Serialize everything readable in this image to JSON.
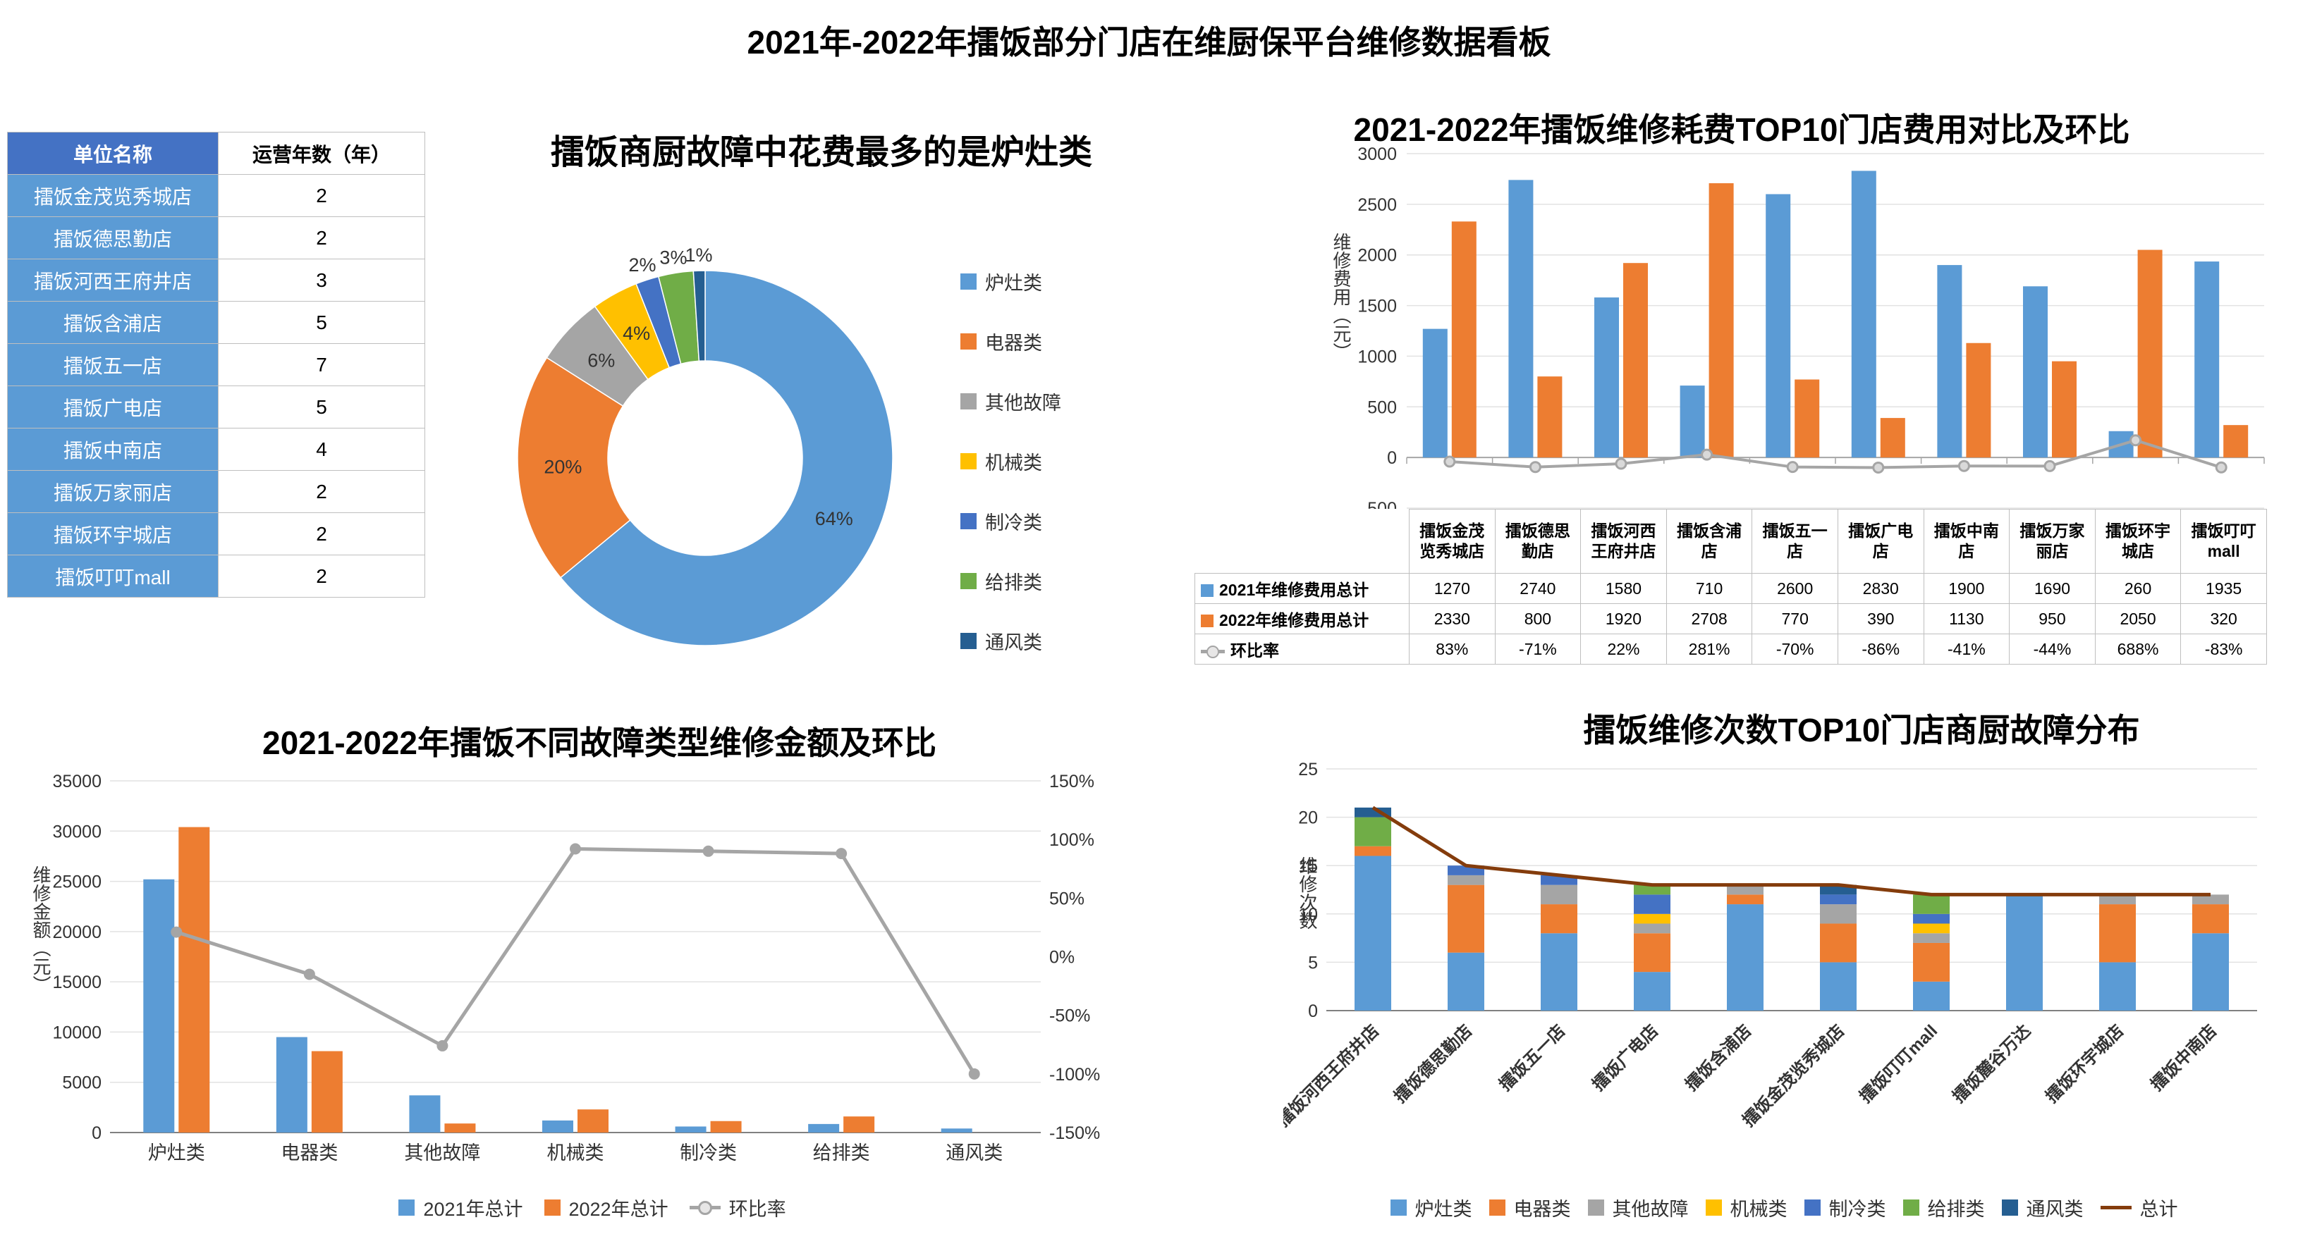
{
  "page": {
    "title": "2021年-2022年擂饭部分门店在维厨保平台维修数据看板"
  },
  "store_table": {
    "headers": [
      "单位名称",
      "运营年数（年）"
    ],
    "rows": [
      {
        "name": "擂饭金茂览秀城店",
        "years": "2"
      },
      {
        "name": "擂饭德思勤店",
        "years": "2"
      },
      {
        "name": "擂饭河西王府井店",
        "years": "3"
      },
      {
        "name": "擂饭含浦店",
        "years": "5"
      },
      {
        "name": "擂饭五一店",
        "years": "7"
      },
      {
        "name": "擂饭广电店",
        "years": "5"
      },
      {
        "name": "擂饭中南店",
        "years": "4"
      },
      {
        "name": "擂饭万家丽店",
        "years": "2"
      },
      {
        "name": "擂饭环宇城店",
        "years": "2"
      },
      {
        "name": "擂饭叮叮mall",
        "years": "2"
      }
    ]
  },
  "chart_data": [
    {
      "id": "fault-cost-donut",
      "type": "pie",
      "title": "擂饭商厨故障中花费最多的是炉灶类",
      "legend_position": "right",
      "slices": [
        {
          "label": "炉灶类",
          "pct": 64,
          "color": "#5B9BD5"
        },
        {
          "label": "电器类",
          "pct": 20,
          "color": "#ED7D31"
        },
        {
          "label": "其他故障",
          "pct": 6,
          "color": "#A5A5A5"
        },
        {
          "label": "机械类",
          "pct": 4,
          "color": "#FFC000"
        },
        {
          "label": "制冷类",
          "pct": 2,
          "color": "#4472C4"
        },
        {
          "label": "给排类",
          "pct": 3,
          "color": "#70AD47"
        },
        {
          "label": "通风类",
          "pct": 1,
          "color": "#255E91"
        }
      ]
    },
    {
      "id": "top10-cost-compare",
      "type": "bar",
      "title": "2021-2022年擂饭维修耗费TOP10门店费用对比及环比",
      "ylabel": "维修费用（元）",
      "ylim": [
        -500,
        3000
      ],
      "y_ticks": [
        3000,
        2500,
        2000,
        1500,
        1000,
        500,
        0,
        -500
      ],
      "grid": true,
      "categories": [
        "擂饭金茂览秀城店",
        "擂饭德思勤店",
        "擂饭河西王府井店",
        "擂饭含浦店",
        "擂饭五一店",
        "擂饭广电店",
        "擂饭中南店",
        "擂饭万家丽店",
        "擂饭环宇城店",
        "擂饭叮叮mall"
      ],
      "series": [
        {
          "name": "2021年维修费用总计",
          "color": "#5B9BD5",
          "values": [
            1270,
            2740,
            1580,
            710,
            2600,
            2830,
            1900,
            1690,
            260,
            1935
          ]
        },
        {
          "name": "2022年维修费用总计",
          "color": "#ED7D31",
          "values": [
            2330,
            800,
            1920,
            2708,
            770,
            390,
            1130,
            950,
            2050,
            320
          ]
        }
      ],
      "line": {
        "name": "环比率",
        "color": "#A5A5A5",
        "values": [
          "83%",
          "-71%",
          "22%",
          "281%",
          "-70%",
          "-86%",
          "-41%",
          "-44%",
          "688%",
          "-83%"
        ]
      }
    },
    {
      "id": "fault-type-amount",
      "type": "bar",
      "title": "2021-2022年擂饭不同故障类型维修金额及环比",
      "ylabel": "维修金额（元）",
      "ylim": [
        0,
        35000
      ],
      "y_ticks": [
        35000,
        30000,
        25000,
        20000,
        15000,
        10000,
        5000,
        0
      ],
      "y2lim": [
        -150,
        150
      ],
      "y2_ticks": [
        "150%",
        "100%",
        "50%",
        "0%",
        "-50%",
        "-100%",
        "-150%"
      ],
      "grid": true,
      "categories": [
        "炉灶类",
        "电器类",
        "其他故障",
        "机械类",
        "制冷类",
        "给排类",
        "通风类"
      ],
      "series": [
        {
          "name": "2021年总计",
          "color": "#5B9BD5",
          "values": [
            25200,
            9500,
            3700,
            1200,
            600,
            850,
            400
          ]
        },
        {
          "name": "2022年总计",
          "color": "#ED7D31",
          "values": [
            30400,
            8100,
            900,
            2300,
            1140,
            1600,
            0
          ]
        }
      ],
      "line": {
        "name": "环比率",
        "color": "#A5A5A5",
        "values_pct": [
          21,
          -15,
          -76,
          92,
          90,
          88,
          -100
        ]
      }
    },
    {
      "id": "top10-repair-count",
      "type": "bar",
      "stacked": true,
      "title": "擂饭维修次数TOP10门店商厨故障分布",
      "ylabel": "维修次数",
      "ylim": [
        0,
        25
      ],
      "y_ticks": [
        25,
        20,
        15,
        10,
        5,
        0
      ],
      "grid": true,
      "categories": [
        "擂饭河西王府井店",
        "擂饭德思勤店",
        "擂饭五一店",
        "擂饭广电店",
        "擂饭含浦店",
        "擂饭金茂览秀城店",
        "擂饭叮叮mall",
        "擂饭麓谷万达",
        "擂饭环宇城店",
        "擂饭中南店"
      ],
      "series": [
        {
          "name": "炉灶类",
          "color": "#5B9BD5",
          "values": [
            16,
            6,
            8,
            4,
            11,
            5,
            3,
            12,
            5,
            8
          ]
        },
        {
          "name": "电器类",
          "color": "#ED7D31",
          "values": [
            1,
            7,
            3,
            4,
            1,
            4,
            4,
            0,
            6,
            3
          ]
        },
        {
          "name": "其他故障",
          "color": "#A5A5A5",
          "values": [
            0,
            1,
            2,
            1,
            1,
            2,
            1,
            0,
            1,
            1
          ]
        },
        {
          "name": "机械类",
          "color": "#FFC000",
          "values": [
            0,
            0,
            0,
            1,
            0,
            0,
            1,
            0,
            0,
            0
          ]
        },
        {
          "name": "制冷类",
          "color": "#4472C4",
          "values": [
            0,
            1,
            1,
            2,
            0,
            1,
            1,
            0,
            0,
            0
          ]
        },
        {
          "name": "给排类",
          "color": "#70AD47",
          "values": [
            3,
            0,
            0,
            1,
            0,
            0,
            2,
            0,
            0,
            0
          ]
        },
        {
          "name": "通风类",
          "color": "#255E91",
          "values": [
            1,
            0,
            0,
            0,
            0,
            1,
            0,
            0,
            0,
            0
          ]
        }
      ],
      "line": {
        "name": "总计",
        "color": "#843C0C",
        "values": [
          21,
          15,
          14,
          13,
          13,
          13,
          12,
          12,
          12,
          12
        ]
      }
    }
  ]
}
